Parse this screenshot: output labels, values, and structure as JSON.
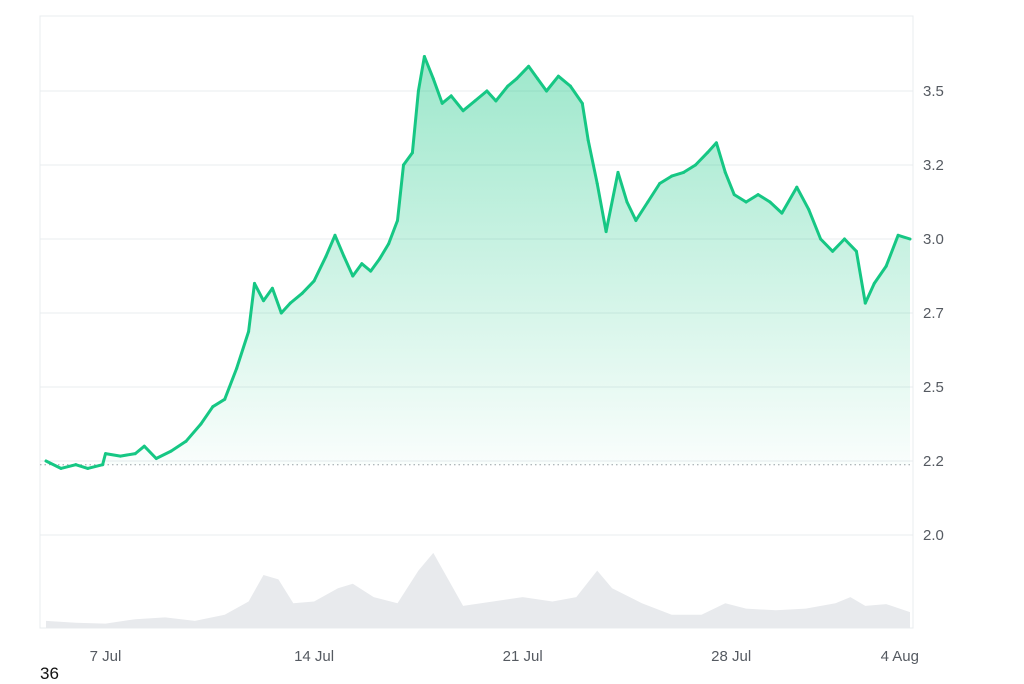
{
  "chart_data": {
    "type": "area",
    "title": "",
    "xlabel": "",
    "ylabel": "",
    "y_ticks": [
      "2.0",
      "2.2",
      "2.5",
      "2.7",
      "3.0",
      "3.2",
      "3.5"
    ],
    "x_ticks": [
      "7 Jul",
      "14 Jul",
      "21 Jul",
      "28 Jul",
      "4 Aug"
    ],
    "reference_line": 2.19,
    "ylim": [
      1.93,
      3.72
    ],
    "grid": true,
    "colors": {
      "up": "#16c784",
      "down": "#ea3943",
      "volume": "#e8eaed",
      "grid": "#e9ecef"
    },
    "series": [
      {
        "values": [
          [
            5.0,
            2.2
          ],
          [
            5.5,
            2.18
          ],
          [
            6.0,
            2.19
          ],
          [
            6.4,
            2.18
          ],
          [
            6.9,
            2.19
          ],
          [
            7.0,
            2.23
          ],
          [
            7.5,
            2.22
          ],
          [
            8.0,
            2.23
          ],
          [
            8.3,
            2.26
          ],
          [
            8.7,
            2.21
          ],
          [
            9.2,
            2.24
          ],
          [
            9.7,
            2.28
          ],
          [
            10.2,
            2.35
          ],
          [
            10.6,
            2.42
          ],
          [
            11.0,
            2.45
          ],
          [
            11.4,
            2.55
          ],
          [
            11.8,
            2.65
          ],
          [
            12.0,
            2.82
          ],
          [
            12.3,
            2.75
          ],
          [
            12.6,
            2.8
          ],
          [
            12.9,
            2.7
          ],
          [
            13.2,
            2.74
          ],
          [
            13.6,
            2.78
          ],
          [
            14.0,
            2.83
          ],
          [
            14.4,
            2.93
          ],
          [
            14.7,
            3.01
          ],
          [
            15.0,
            2.93
          ],
          [
            15.3,
            2.85
          ],
          [
            15.6,
            2.9
          ],
          [
            15.9,
            2.87
          ],
          [
            16.2,
            2.92
          ],
          [
            16.5,
            2.98
          ],
          [
            16.8,
            3.05
          ],
          [
            17.0,
            3.2
          ],
          [
            17.3,
            3.25
          ],
          [
            17.5,
            3.5
          ],
          [
            17.7,
            3.64
          ],
          [
            18.0,
            3.55
          ],
          [
            18.3,
            3.45
          ],
          [
            18.6,
            3.48
          ],
          [
            19.0,
            3.42
          ],
          [
            19.4,
            3.46
          ],
          [
            19.8,
            3.5
          ],
          [
            20.1,
            3.46
          ],
          [
            20.5,
            3.52
          ],
          [
            20.8,
            3.55
          ],
          [
            21.2,
            3.6
          ],
          [
            21.5,
            3.55
          ],
          [
            21.8,
            3.5
          ],
          [
            22.2,
            3.56
          ],
          [
            22.6,
            3.52
          ],
          [
            23.0,
            3.45
          ],
          [
            23.2,
            3.3
          ],
          [
            23.5,
            3.15
          ],
          [
            23.8,
            3.02
          ],
          [
            24.2,
            3.18
          ],
          [
            24.5,
            3.1
          ],
          [
            24.8,
            3.05
          ],
          [
            25.2,
            3.1
          ],
          [
            25.6,
            3.15
          ],
          [
            26.0,
            3.17
          ],
          [
            26.4,
            3.18
          ],
          [
            26.8,
            3.2
          ],
          [
            27.2,
            3.25
          ],
          [
            27.5,
            3.29
          ],
          [
            27.8,
            3.18
          ],
          [
            28.1,
            3.12
          ],
          [
            28.5,
            3.1
          ],
          [
            28.9,
            3.12
          ],
          [
            29.3,
            3.1
          ],
          [
            29.7,
            3.07
          ],
          [
            30.2,
            3.14
          ],
          [
            30.6,
            3.08
          ],
          [
            31.0,
            3.0
          ],
          [
            31.4,
            2.95
          ],
          [
            31.8,
            3.0
          ],
          [
            32.2,
            2.95
          ],
          [
            32.5,
            2.74
          ],
          [
            32.8,
            2.82
          ],
          [
            33.2,
            2.89
          ],
          [
            33.6,
            3.01
          ],
          [
            34.0,
            3.0
          ]
        ]
      }
    ],
    "volume": [
      [
        5.0,
        0.08
      ],
      [
        6.0,
        0.06
      ],
      [
        7.0,
        0.05
      ],
      [
        8.0,
        0.1
      ],
      [
        9.0,
        0.12
      ],
      [
        10.0,
        0.08
      ],
      [
        11.0,
        0.15
      ],
      [
        11.8,
        0.3
      ],
      [
        12.3,
        0.6
      ],
      [
        12.8,
        0.55
      ],
      [
        13.3,
        0.28
      ],
      [
        14.0,
        0.3
      ],
      [
        14.8,
        0.45
      ],
      [
        15.3,
        0.5
      ],
      [
        16.0,
        0.35
      ],
      [
        16.8,
        0.28
      ],
      [
        17.5,
        0.65
      ],
      [
        18.0,
        0.85
      ],
      [
        18.5,
        0.55
      ],
      [
        19.0,
        0.25
      ],
      [
        20.0,
        0.3
      ],
      [
        21.0,
        0.35
      ],
      [
        22.0,
        0.3
      ],
      [
        22.8,
        0.35
      ],
      [
        23.5,
        0.65
      ],
      [
        24.0,
        0.45
      ],
      [
        25.0,
        0.28
      ],
      [
        26.0,
        0.15
      ],
      [
        27.0,
        0.15
      ],
      [
        27.8,
        0.28
      ],
      [
        28.5,
        0.22
      ],
      [
        29.5,
        0.2
      ],
      [
        30.5,
        0.22
      ],
      [
        31.5,
        0.28
      ],
      [
        32.0,
        0.35
      ],
      [
        32.5,
        0.25
      ],
      [
        33.2,
        0.27
      ],
      [
        34.0,
        0.18
      ]
    ]
  },
  "footer": {
    "corner_label": "36"
  }
}
